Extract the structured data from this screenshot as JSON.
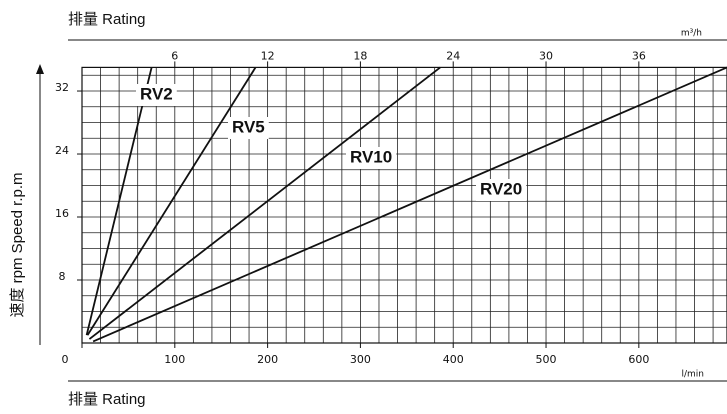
{
  "chart_data": {
    "type": "line",
    "title": "排量 Rating",
    "x_label": "排量 Rating",
    "x_unit": "l/min",
    "x2_unit": "m³/h",
    "y_label": "速度 rpm Speed r.p.m",
    "xlim": [
      0,
      695
    ],
    "xticks": [
      0,
      100,
      200,
      300,
      400,
      500,
      600
    ],
    "x2lim": [
      0,
      41.7
    ],
    "x2ticks": [
      6,
      12,
      18,
      24,
      30,
      36
    ],
    "ylim": [
      0,
      35
    ],
    "yticks": [
      8,
      16,
      24,
      32
    ],
    "xminor": [
      20,
      40,
      60,
      80,
      100,
      120,
      140,
      160,
      180,
      200,
      220,
      240,
      260,
      280,
      300,
      320,
      340,
      360,
      380,
      400,
      420,
      440,
      460,
      480,
      500,
      520,
      540,
      560,
      580,
      600,
      620,
      640,
      660,
      680
    ],
    "yminor": [
      2,
      4,
      6,
      8,
      10,
      12,
      14,
      16,
      18,
      20,
      22,
      24,
      26,
      28,
      30,
      32,
      34
    ],
    "grid": true,
    "series": [
      {
        "name": "RV2",
        "color": "#111111",
        "x": [
          5,
          75
        ],
        "values": [
          1,
          35
        ]
      },
      {
        "name": "RV5",
        "color": "#111111",
        "x": [
          6,
          187
        ],
        "values": [
          1,
          35
        ]
      },
      {
        "name": "RV10",
        "color": "#111111",
        "x": [
          8,
          386
        ],
        "values": [
          0.5,
          35
        ]
      },
      {
        "name": "RV20",
        "color": "#111111",
        "x": [
          12,
          695
        ],
        "values": [
          0.2,
          35
        ]
      }
    ]
  }
}
